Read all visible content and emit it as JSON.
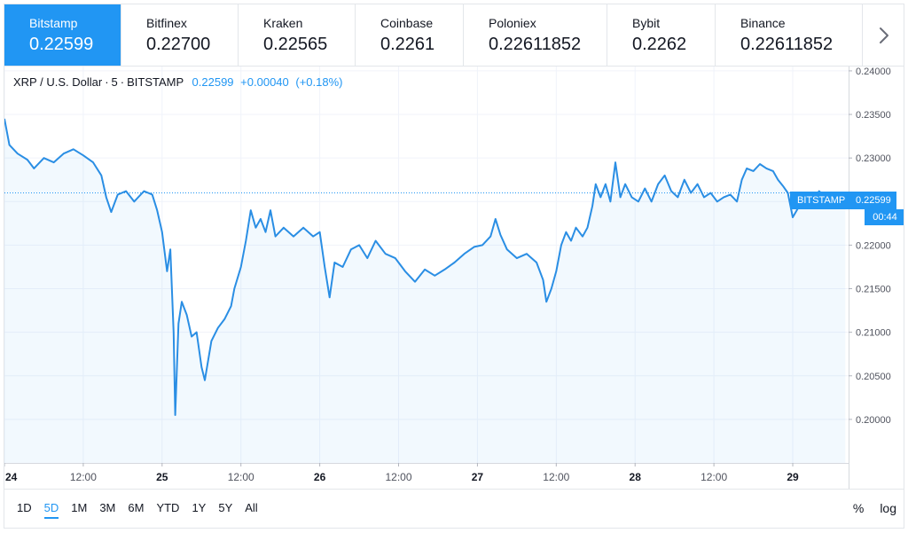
{
  "tabs": [
    {
      "name": "Bitstamp",
      "price": "0.22599",
      "active": true
    },
    {
      "name": "Bitfinex",
      "price": "0.22700"
    },
    {
      "name": "Kraken",
      "price": "0.22565"
    },
    {
      "name": "Coinbase",
      "price": "0.2261"
    },
    {
      "name": "Poloniex",
      "price": "0.22611852"
    },
    {
      "name": "Bybit",
      "price": "0.2262"
    },
    {
      "name": "Binance",
      "price": "0.22611852"
    }
  ],
  "legend": {
    "symbol": "XRP / U.S. Dollar",
    "interval": "5",
    "exchange": "BITSTAMP",
    "last": "0.22599",
    "change": "+0.00040",
    "change_pct": "(+0.18%)"
  },
  "price_tag": {
    "label": "BITSTAMP",
    "value": "0.22599",
    "countdown": "00:44"
  },
  "colors": {
    "accent": "#2196f3",
    "grid": "#f0f3fa",
    "line": "#2a8ee4"
  },
  "chart_data": {
    "type": "area",
    "ylim": [
      0.195,
      0.2405
    ],
    "xlim": [
      0,
      25.7
    ],
    "y_ticks": [
      0.24,
      0.235,
      0.23,
      0.225,
      0.22,
      0.215,
      0.21,
      0.205,
      0.2
    ],
    "y_tick_labels": [
      "0.24000",
      "0.23500",
      "0.23000",
      "0.22500",
      "0.22000",
      "0.21500",
      "0.21000",
      "0.20500",
      "0.20000"
    ],
    "x_ticks": [
      0,
      2.4,
      4.8,
      7.2,
      9.6,
      12,
      14.4,
      16.8,
      19.2,
      21.6,
      24
    ],
    "x_tick_labels": [
      "24",
      "12:00",
      "25",
      "12:00",
      "26",
      "12:00",
      "27",
      "12:00",
      "28",
      "12:00",
      "29"
    ],
    "last_value": 0.22599,
    "series": [
      {
        "values": [
          [
            0,
            0.2345
          ],
          [
            0.15,
            0.2315
          ],
          [
            0.4,
            0.2305
          ],
          [
            0.7,
            0.2298
          ],
          [
            0.9,
            0.2288
          ],
          [
            1.2,
            0.23
          ],
          [
            1.5,
            0.2295
          ],
          [
            1.8,
            0.2305
          ],
          [
            2.1,
            0.231
          ],
          [
            2.4,
            0.2303
          ],
          [
            2.7,
            0.2295
          ],
          [
            2.95,
            0.228
          ],
          [
            3.1,
            0.2255
          ],
          [
            3.25,
            0.2238
          ],
          [
            3.45,
            0.2258
          ],
          [
            3.7,
            0.2262
          ],
          [
            3.95,
            0.225
          ],
          [
            4.25,
            0.2262
          ],
          [
            4.5,
            0.2258
          ],
          [
            4.65,
            0.224
          ],
          [
            4.8,
            0.2215
          ],
          [
            4.95,
            0.217
          ],
          [
            5.05,
            0.2195
          ],
          [
            5.15,
            0.21
          ],
          [
            5.2,
            0.2005
          ],
          [
            5.3,
            0.211
          ],
          [
            5.4,
            0.2135
          ],
          [
            5.55,
            0.212
          ],
          [
            5.7,
            0.2095
          ],
          [
            5.85,
            0.21
          ],
          [
            6.0,
            0.206
          ],
          [
            6.1,
            0.2045
          ],
          [
            6.3,
            0.209
          ],
          [
            6.5,
            0.2105
          ],
          [
            6.7,
            0.2115
          ],
          [
            6.9,
            0.213
          ],
          [
            7.0,
            0.215
          ],
          [
            7.2,
            0.2175
          ],
          [
            7.35,
            0.2205
          ],
          [
            7.5,
            0.224
          ],
          [
            7.65,
            0.222
          ],
          [
            7.8,
            0.223
          ],
          [
            7.95,
            0.2215
          ],
          [
            8.1,
            0.224
          ],
          [
            8.25,
            0.221
          ],
          [
            8.5,
            0.222
          ],
          [
            8.8,
            0.221
          ],
          [
            9.1,
            0.222
          ],
          [
            9.4,
            0.221
          ],
          [
            9.6,
            0.2215
          ],
          [
            9.75,
            0.2175
          ],
          [
            9.9,
            0.214
          ],
          [
            10.05,
            0.218
          ],
          [
            10.3,
            0.2175
          ],
          [
            10.55,
            0.2195
          ],
          [
            10.8,
            0.22
          ],
          [
            11.05,
            0.2185
          ],
          [
            11.3,
            0.2205
          ],
          [
            11.6,
            0.219
          ],
          [
            11.9,
            0.2185
          ],
          [
            12.2,
            0.217
          ],
          [
            12.5,
            0.2158
          ],
          [
            12.8,
            0.2172
          ],
          [
            13.1,
            0.2165
          ],
          [
            13.4,
            0.2172
          ],
          [
            13.7,
            0.218
          ],
          [
            14.0,
            0.219
          ],
          [
            14.3,
            0.2198
          ],
          [
            14.55,
            0.22
          ],
          [
            14.8,
            0.221
          ],
          [
            14.95,
            0.223
          ],
          [
            15.1,
            0.2212
          ],
          [
            15.3,
            0.2195
          ],
          [
            15.6,
            0.2185
          ],
          [
            15.9,
            0.219
          ],
          [
            16.2,
            0.218
          ],
          [
            16.4,
            0.216
          ],
          [
            16.5,
            0.2135
          ],
          [
            16.65,
            0.215
          ],
          [
            16.8,
            0.217
          ],
          [
            16.95,
            0.22
          ],
          [
            17.1,
            0.2215
          ],
          [
            17.25,
            0.2205
          ],
          [
            17.4,
            0.222
          ],
          [
            17.6,
            0.221
          ],
          [
            17.75,
            0.222
          ],
          [
            17.9,
            0.2245
          ],
          [
            18.0,
            0.227
          ],
          [
            18.15,
            0.2255
          ],
          [
            18.3,
            0.227
          ],
          [
            18.45,
            0.225
          ],
          [
            18.6,
            0.2295
          ],
          [
            18.75,
            0.2255
          ],
          [
            18.9,
            0.227
          ],
          [
            19.1,
            0.2255
          ],
          [
            19.3,
            0.225
          ],
          [
            19.5,
            0.2265
          ],
          [
            19.7,
            0.225
          ],
          [
            19.9,
            0.227
          ],
          [
            20.1,
            0.228
          ],
          [
            20.3,
            0.2262
          ],
          [
            20.5,
            0.2255
          ],
          [
            20.7,
            0.2275
          ],
          [
            20.9,
            0.226
          ],
          [
            21.1,
            0.227
          ],
          [
            21.3,
            0.2255
          ],
          [
            21.5,
            0.226
          ],
          [
            21.7,
            0.225
          ],
          [
            21.9,
            0.2255
          ],
          [
            22.1,
            0.2258
          ],
          [
            22.3,
            0.225
          ],
          [
            22.45,
            0.2275
          ],
          [
            22.6,
            0.2288
          ],
          [
            22.8,
            0.2285
          ],
          [
            23.0,
            0.2293
          ],
          [
            23.2,
            0.2288
          ],
          [
            23.4,
            0.2285
          ],
          [
            23.55,
            0.2275
          ],
          [
            23.7,
            0.2268
          ],
          [
            23.85,
            0.226
          ],
          [
            24.0,
            0.2232
          ],
          [
            24.2,
            0.2245
          ],
          [
            24.4,
            0.2255
          ],
          [
            24.6,
            0.225
          ],
          [
            24.8,
            0.2262
          ],
          [
            25.0,
            0.2255
          ],
          [
            25.2,
            0.2245
          ],
          [
            25.4,
            0.2258
          ],
          [
            25.6,
            0.226
          ]
        ]
      }
    ]
  },
  "range_buttons": [
    "1D",
    "5D",
    "1M",
    "3M",
    "6M",
    "YTD",
    "1Y",
    "5Y",
    "All"
  ],
  "active_range": "5D",
  "options": {
    "percent": "%",
    "log": "log"
  },
  "icons": {
    "next": "chevron-right-icon"
  }
}
